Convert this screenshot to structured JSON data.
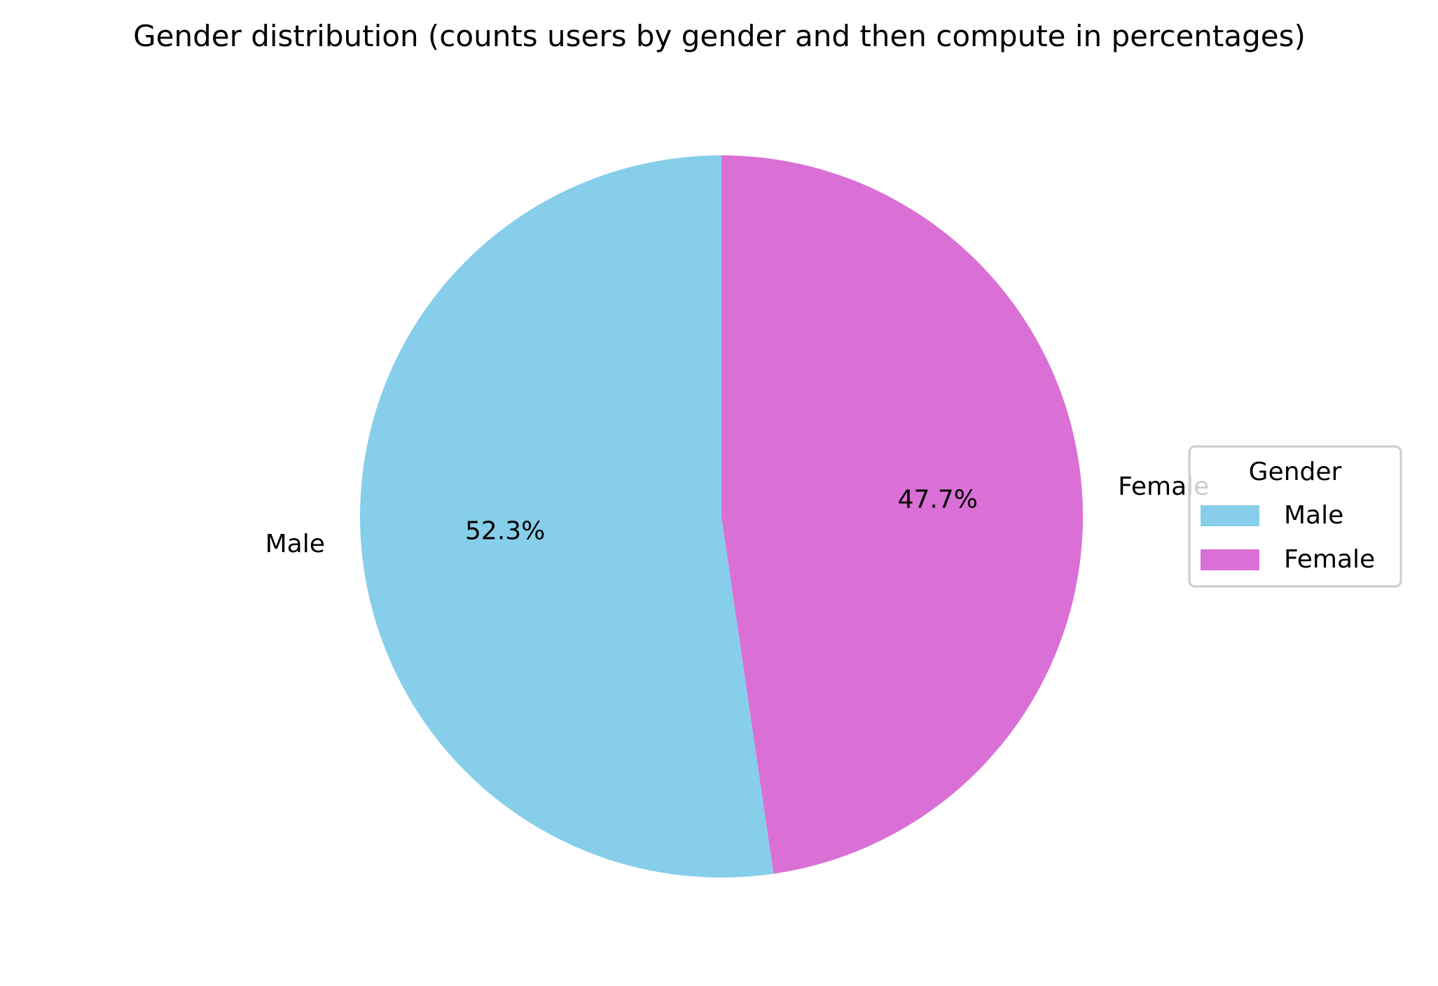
{
  "chart_data": {
    "type": "pie",
    "title": "Gender distribution (counts users by gender and then compute in percentages)",
    "categories": [
      "Male",
      "Female"
    ],
    "values": [
      52.3,
      47.7
    ],
    "value_labels": [
      "52.3%",
      "47.7%"
    ],
    "colors": [
      "#87CEEB",
      "#DA70D6"
    ],
    "start_angle_deg": 90,
    "direction": "counterclockwise",
    "legend": {
      "title": "Gender",
      "placement": "right-center",
      "entries": [
        "Male",
        "Female"
      ]
    }
  }
}
